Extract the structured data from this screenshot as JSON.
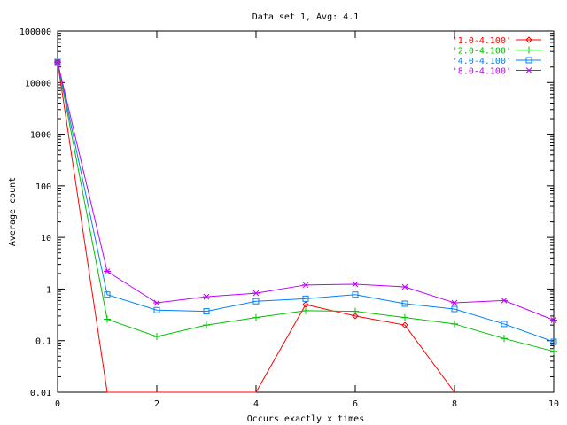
{
  "chart_data": {
    "type": "line",
    "title": "Data set 1, Avg: 4.1",
    "xlabel": "Occurs exactly x times",
    "ylabel": "Average count",
    "yscale": "log",
    "xlim": [
      0,
      10
    ],
    "ylim": [
      0.01,
      100000
    ],
    "xticks": [
      "0",
      "2",
      "4",
      "6",
      "8",
      "10"
    ],
    "yticks": [
      "0.01",
      "0.1",
      "1",
      "10",
      "100",
      "1000",
      "10000",
      "100000"
    ],
    "legend_position": "top-right",
    "x": [
      0,
      1,
      2,
      3,
      4,
      5,
      6,
      7,
      8,
      9,
      10
    ],
    "series": [
      {
        "name": "'1.0-4.100'",
        "color": "#ff0000",
        "marker": "diamond",
        "values": [
          25000,
          0,
          0,
          0,
          0,
          0.5,
          0.3,
          0.2,
          0,
          null,
          null
        ]
      },
      {
        "name": "'2.0-4.100'",
        "color": "#00c000",
        "marker": "plus",
        "values": [
          25000,
          0.26,
          0.12,
          0.2,
          0.28,
          0.38,
          0.37,
          0.28,
          0.21,
          0.11,
          0.062
        ]
      },
      {
        "name": "'4.0-4.100'",
        "color": "#0080ff",
        "marker": "square",
        "values": [
          25000,
          0.78,
          0.39,
          0.37,
          0.58,
          0.65,
          0.78,
          0.52,
          0.41,
          0.21,
          0.095
        ]
      },
      {
        "name": "'8.0-4.100'",
        "color": "#c000ff",
        "marker": "cross",
        "values": [
          25000,
          2.2,
          0.54,
          0.71,
          0.83,
          1.2,
          1.24,
          1.1,
          0.54,
          0.6,
          0.25
        ]
      }
    ]
  }
}
